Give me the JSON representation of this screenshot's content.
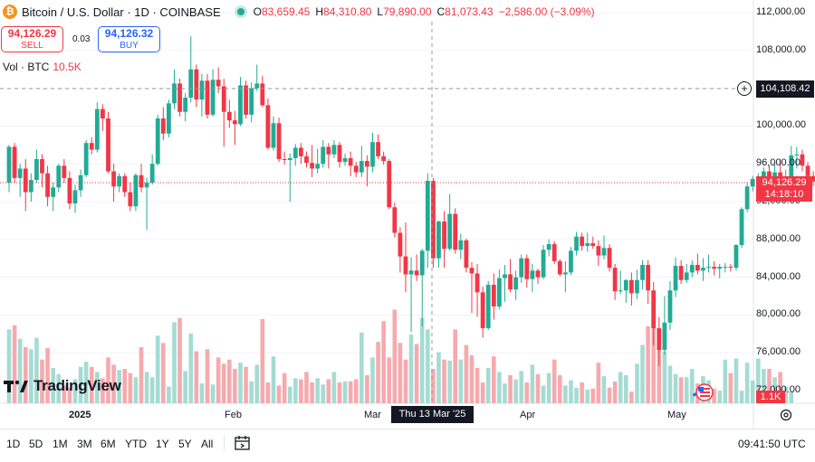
{
  "header": {
    "symbol_title": "Bitcoin / U.S. Dollar · 1D · COINBASE",
    "ohlc": {
      "o_label": "O",
      "o": "83,659.45",
      "h_label": "H",
      "h": "84,310.80",
      "l_label": "L",
      "l": "79,890.00",
      "c_label": "C",
      "c": "81,073.43",
      "change": "−2,586.00 (−3.09%)"
    },
    "icons": {
      "logo": "bitcoin-logo-icon",
      "status": "market-live-dot-icon"
    }
  },
  "trade": {
    "sell_price": "94,126.29",
    "sell_label": "SELL",
    "spread": "0.03",
    "buy_price": "94,126.32",
    "buy_label": "BUY"
  },
  "volume_legend": {
    "label": "Vol · BTC",
    "value": "10.5K"
  },
  "price_axis": {
    "ticks": [
      "112,000.00",
      "108,000.00",
      "104,000.00",
      "100,000.00",
      "96,000.00",
      "92,000.00",
      "88,000.00",
      "84,000.00",
      "80,000.00",
      "76,000.00",
      "72,000.00"
    ],
    "crosshair_price": "104,108.42",
    "last_price": "94,126.29",
    "countdown": "14:18:10",
    "volume_badge": "1.1K"
  },
  "time_axis": {
    "labels": [
      "2025",
      "Feb",
      "Mar",
      "Apr",
      "May"
    ],
    "crosshair_date": "Thu 13 Mar '25"
  },
  "branding": {
    "logo_text": "TradingView"
  },
  "bottom_bar": {
    "ranges": [
      "1D",
      "5D",
      "1M",
      "3M",
      "6M",
      "YTD",
      "1Y",
      "5Y",
      "All"
    ],
    "clock": "09:41:50 UTC"
  },
  "colors": {
    "up": "#22ab94",
    "down": "#f23645",
    "up_volume": "#a5dbd3",
    "down_volume": "#f7a9ae",
    "crosshair_badge": "#131722"
  },
  "chart_data": {
    "type": "candlestick",
    "title": "Bitcoin / U.S. Dollar · 1D · COINBASE",
    "ylim": [
      72000,
      112000
    ],
    "series": [
      {
        "name": "price",
        "values": [
          [
            94000,
            98000,
            93000,
            97800
          ],
          [
            97800,
            98200,
            94000,
            94500
          ],
          [
            94500,
            96000,
            92500,
            95500
          ],
          [
            95500,
            96500,
            91000,
            93000
          ],
          [
            93000,
            95000,
            92000,
            94300
          ],
          [
            94300,
            97500,
            94000,
            96500
          ],
          [
            96500,
            97000,
            93500,
            95000
          ],
          [
            95000,
            95800,
            91500,
            92500
          ],
          [
            92500,
            94000,
            91000,
            93500
          ],
          [
            93500,
            96000,
            93000,
            95800
          ],
          [
            95800,
            96500,
            94000,
            94500
          ],
          [
            94500,
            95200,
            91200,
            91800
          ],
          [
            91800,
            93800,
            90800,
            93200
          ],
          [
            93200,
            95400,
            92500,
            94800
          ],
          [
            94800,
            98500,
            94600,
            98200
          ],
          [
            98200,
            98800,
            97000,
            97500
          ],
          [
            97500,
            102500,
            97200,
            101800
          ],
          [
            101800,
            102300,
            99500,
            100800
          ],
          [
            100800,
            101500,
            95000,
            95200
          ],
          [
            95200,
            96000,
            92000,
            93600
          ],
          [
            93600,
            95000,
            93000,
            94700
          ],
          [
            94700,
            95000,
            92500,
            93000
          ],
          [
            93000,
            94000,
            91000,
            91500
          ],
          [
            91500,
            95000,
            91000,
            94800
          ],
          [
            94800,
            96000,
            93000,
            93500
          ],
          [
            93500,
            94500,
            89000,
            94000
          ],
          [
            94000,
            97000,
            93800,
            96000
          ],
          [
            96000,
            101200,
            95800,
            100800
          ],
          [
            100800,
            102000,
            98500,
            99200
          ],
          [
            99200,
            102800,
            98800,
            102400
          ],
          [
            102400,
            106000,
            101800,
            104500
          ],
          [
            104500,
            105000,
            101000,
            101500
          ],
          [
            101500,
            103500,
            100500,
            103000
          ],
          [
            103000,
            109500,
            102500,
            106000
          ],
          [
            106000,
            106500,
            102000,
            102800
          ],
          [
            102800,
            105500,
            101000,
            104800
          ],
          [
            104800,
            105500,
            100800,
            101200
          ],
          [
            101200,
            106000,
            101000,
            104900
          ],
          [
            104900,
            106200,
            103500,
            104200
          ],
          [
            104200,
            105000,
            97800,
            101500
          ],
          [
            101500,
            102800,
            99800,
            100600
          ],
          [
            100600,
            101600,
            98000,
            100200
          ],
          [
            100200,
            105200,
            100000,
            104300
          ],
          [
            104300,
            104800,
            100800,
            101200
          ],
          [
            101200,
            104600,
            100400,
            104000
          ],
          [
            104000,
            106500,
            103700,
            104500
          ],
          [
            104500,
            105300,
            102000,
            102200
          ],
          [
            102200,
            102900,
            97500,
            97700
          ],
          [
            97700,
            101000,
            97400,
            100300
          ],
          [
            100300,
            100900,
            96200,
            96500
          ],
          [
            96500,
            97300,
            95900,
            96400
          ],
          [
            96400,
            97100,
            92000,
            96600
          ],
          [
            96600,
            98100,
            95800,
            97700
          ],
          [
            97700,
            98200,
            96000,
            96800
          ],
          [
            96800,
            97300,
            95600,
            96100
          ],
          [
            96100,
            98000,
            94600,
            95500
          ],
          [
            95500,
            97600,
            95000,
            96000
          ],
          [
            96000,
            98500,
            95600,
            97800
          ],
          [
            97800,
            98200,
            95500,
            97000
          ],
          [
            97000,
            98500,
            96600,
            98000
          ],
          [
            98000,
            98300,
            95600,
            96200
          ],
          [
            96200,
            97100,
            95800,
            96600
          ],
          [
            96600,
            97300,
            94700,
            95800
          ],
          [
            95800,
            96200,
            94600,
            95100
          ],
          [
            95100,
            97900,
            94600,
            96300
          ],
          [
            96300,
            96900,
            93600,
            95700
          ],
          [
            95700,
            99300,
            95100,
            98300
          ],
          [
            98300,
            99100,
            96500,
            96800
          ],
          [
            96800,
            97300,
            95900,
            96300
          ],
          [
            96300,
            96500,
            91200,
            91400
          ],
          [
            91400,
            91900,
            88200,
            88700
          ],
          [
            88700,
            89300,
            84500,
            86200
          ],
          [
            86200,
            89800,
            82400,
            84300
          ],
          [
            84300,
            86100,
            78200,
            84700
          ],
          [
            84700,
            86400,
            83600,
            84200
          ],
          [
            84200,
            87000,
            78800,
            86800
          ],
          [
            86800,
            95000,
            85000,
            94200
          ],
          [
            94200,
            94500,
            85000,
            86000
          ],
          [
            86000,
            90000,
            85000,
            89900
          ],
          [
            89900,
            91000,
            85000,
            87000
          ],
          [
            87000,
            92800,
            86800,
            90700
          ],
          [
            90700,
            91300,
            86500,
            86900
          ],
          [
            86900,
            88600,
            85900,
            87900
          ],
          [
            87900,
            88100,
            84500,
            85000
          ],
          [
            85000,
            85600,
            80200,
            84400
          ],
          [
            84400,
            85400,
            79800,
            82400
          ],
          [
            82400,
            83000,
            77600,
            78600
          ],
          [
            78600,
            83600,
            78400,
            83200
          ],
          [
            83200,
            84400,
            79500,
            80900
          ],
          [
            80900,
            84800,
            80600,
            83900
          ],
          [
            83900,
            85300,
            81400,
            84300
          ],
          [
            84300,
            85900,
            82400,
            82700
          ],
          [
            82700,
            84700,
            81600,
            84000
          ],
          [
            84000,
            86400,
            83400,
            86000
          ],
          [
            86000,
            86400,
            82900,
            83800
          ],
          [
            83800,
            85400,
            82400,
            84700
          ],
          [
            84700,
            84900,
            83300,
            84000
          ],
          [
            84000,
            87400,
            83800,
            86900
          ],
          [
            86900,
            88000,
            86200,
            87500
          ],
          [
            87500,
            87800,
            85400,
            85700
          ],
          [
            85700,
            85900,
            84100,
            84300
          ],
          [
            84300,
            85700,
            82400,
            84500
          ],
          [
            84500,
            87200,
            84200,
            86800
          ],
          [
            86800,
            88800,
            86300,
            88300
          ],
          [
            88300,
            88700,
            86800,
            87300
          ],
          [
            87300,
            88700,
            86700,
            87600
          ],
          [
            87600,
            88300,
            87000,
            87300
          ],
          [
            87300,
            87900,
            85200,
            86300
          ],
          [
            86300,
            88400,
            85900,
            87100
          ],
          [
            87100,
            87500,
            84600,
            85000
          ],
          [
            85000,
            85400,
            81600,
            82500
          ],
          [
            82500,
            84700,
            82200,
            82600
          ],
          [
            82600,
            83800,
            81300,
            83700
          ],
          [
            83700,
            84500,
            81000,
            82300
          ],
          [
            82300,
            84800,
            81700,
            83700
          ],
          [
            83700,
            85800,
            82700,
            85300
          ],
          [
            85300,
            85800,
            81200,
            82600
          ],
          [
            82600,
            83500,
            76800,
            78600
          ],
          [
            78600,
            79800,
            74600,
            76300
          ],
          [
            76300,
            82000,
            75800,
            79200
          ],
          [
            79200,
            83600,
            78400,
            82600
          ],
          [
            82600,
            86100,
            81900,
            85200
          ],
          [
            85200,
            85800,
            83300,
            83700
          ],
          [
            83700,
            85400,
            83400,
            84500
          ],
          [
            84500,
            85800,
            84000,
            85300
          ],
          [
            85300,
            86500,
            84300,
            84700
          ],
          [
            84700,
            86000,
            83600,
            85000
          ],
          [
            85000,
            86400,
            84500,
            85100
          ],
          [
            85100,
            85700,
            84200,
            84900
          ],
          [
            84900,
            85400,
            83900,
            85100
          ],
          [
            85100,
            85500,
            84500,
            85100
          ],
          [
            85100,
            85400,
            84600,
            85000
          ],
          [
            85000,
            87500,
            84700,
            87400
          ],
          [
            87400,
            91400,
            87100,
            91200
          ],
          [
            91200,
            94000,
            90900,
            93600
          ],
          [
            93600,
            94700,
            93100,
            94400
          ],
          [
            94400,
            95000,
            94000,
            94500
          ],
          [
            94500,
            95600,
            93700,
            95200
          ],
          [
            95200,
            95800,
            94000,
            94300
          ],
          [
            94300,
            96000,
            93800,
            95100
          ],
          [
            95100,
            96500,
            94300,
            94200
          ],
          [
            94200,
            95400,
            93500,
            94400
          ],
          [
            94400,
            97900,
            94200,
            96900
          ],
          [
            96900,
            97800,
            95500,
            97000
          ],
          [
            97000,
            97500,
            95200,
            95800
          ],
          [
            95800,
            96200,
            93800,
            94700
          ],
          [
            94700,
            95200,
            93600,
            94126
          ]
        ]
      },
      {
        "name": "volume",
        "values": [
          7.1,
          7.5,
          6.2,
          5.4,
          5.2,
          6.3,
          4.2,
          5.3,
          3.4,
          2.8,
          1.7,
          1.5,
          2.3,
          3.5,
          4.0,
          3.5,
          3.0,
          2.4,
          4.4,
          3.7,
          3.2,
          3.3,
          2.9,
          2.5,
          5.4,
          3.0,
          2.5,
          6.5,
          5.8,
          1.6,
          7.8,
          8.2,
          3.1,
          6.7,
          5.0,
          1.9,
          5.2,
          1.8,
          4.4,
          3.8,
          4.2,
          3.3,
          3.9,
          3.5,
          2.1,
          3.7,
          8.1,
          2.0,
          4.5,
          1.7,
          2.9,
          1.6,
          2.4,
          2.3,
          3.0,
          2.0,
          2.4,
          1.8,
          2.3,
          3.0,
          2.0,
          2.1,
          2.1,
          2.3,
          6.8,
          2.7,
          4.4,
          5.9,
          7.9,
          4.4,
          9.0,
          5.8,
          4.2,
          6.6,
          5.7,
          8.2,
          7.1,
          3.3,
          4.9,
          4.2,
          4.1,
          7.1,
          4.2,
          5.6,
          4.6,
          3.4,
          2.0,
          3.4,
          4.5,
          3.0,
          1.9,
          2.7,
          2.3,
          3.1,
          2.0,
          3.7,
          2.8,
          1.7,
          2.9,
          4.2,
          2.7,
          1.7,
          2.2,
          1.5,
          2.0,
          1.3,
          1.4,
          3.9,
          2.6,
          1.5,
          2.1,
          3.0,
          2.7,
          1.1,
          3.8,
          5.6,
          7.4,
          8.3,
          7.2,
          5.0,
          3.6,
          2.8,
          2.5,
          2.5,
          3.3,
          1.9,
          2.6,
          2.2,
          1.4,
          1.2,
          4.2,
          2.9,
          4.3,
          1.2,
          3.9,
          2.2,
          4.3,
          3.3,
          3.3,
          2.5,
          3.0,
          1.6,
          1.1
        ]
      }
    ]
  }
}
